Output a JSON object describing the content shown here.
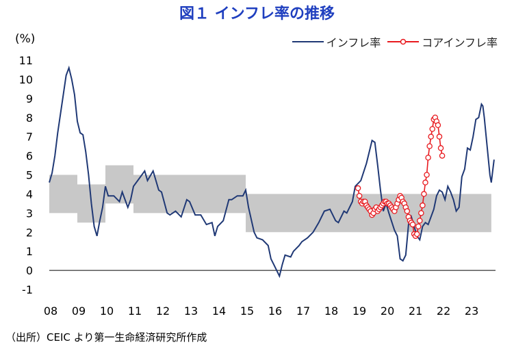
{
  "title": "図１ インフレ率の推移",
  "unit_label": "(%)",
  "source": "（出所）CEIC より第一生命経済研究所作成",
  "colors": {
    "inflation": "#1f3875",
    "core": "#e8191e",
    "band": "#c8c8c8",
    "title": "#1f3fbf"
  },
  "chart_data": {
    "type": "line",
    "ylim": [
      -1,
      11
    ],
    "yticks": [
      "11",
      "10",
      "9",
      "8",
      "7",
      "6",
      "5",
      "4",
      "3",
      "2",
      "1",
      "0",
      "-1"
    ],
    "xticks": [
      "08",
      "09",
      "10",
      "11",
      "12",
      "13",
      "14",
      "15",
      "16",
      "17",
      "18",
      "19",
      "20",
      "21",
      "22",
      "23"
    ],
    "legend": [
      {
        "name": "インフレ率",
        "key": "inflation"
      },
      {
        "name": "コアインフレ率",
        "key": "core"
      }
    ],
    "target_band": [
      {
        "x0": 2008.0,
        "x1": 2009.0,
        "lo": 3,
        "hi": 5
      },
      {
        "x0": 2009.0,
        "x1": 2010.0,
        "lo": 2.5,
        "hi": 4.5
      },
      {
        "x0": 2010.0,
        "x1": 2011.0,
        "lo": 3.5,
        "hi": 5.5
      },
      {
        "x0": 2011.0,
        "x1": 2015.0,
        "lo": 3,
        "hi": 5
      },
      {
        "x0": 2015.0,
        "x1": 2023.75,
        "lo": 2,
        "hi": 4
      }
    ],
    "series": [
      {
        "name": "インフレ率",
        "key": "inflation",
        "points": [
          [
            2008.0,
            4.6
          ],
          [
            2008.1,
            5.1
          ],
          [
            2008.2,
            6.0
          ],
          [
            2008.3,
            7.2
          ],
          [
            2008.4,
            8.2
          ],
          [
            2008.5,
            9.2
          ],
          [
            2008.6,
            10.2
          ],
          [
            2008.7,
            10.6
          ],
          [
            2008.8,
            10.0
          ],
          [
            2008.9,
            9.2
          ],
          [
            2009.0,
            7.8
          ],
          [
            2009.1,
            7.2
          ],
          [
            2009.2,
            7.1
          ],
          [
            2009.3,
            6.2
          ],
          [
            2009.4,
            5.0
          ],
          [
            2009.5,
            3.5
          ],
          [
            2009.6,
            2.3
          ],
          [
            2009.7,
            1.8
          ],
          [
            2009.8,
            2.6
          ],
          [
            2009.9,
            3.3
          ],
          [
            2010.0,
            4.4
          ],
          [
            2010.1,
            3.9
          ],
          [
            2010.3,
            3.9
          ],
          [
            2010.5,
            3.6
          ],
          [
            2010.6,
            4.1
          ],
          [
            2010.8,
            3.3
          ],
          [
            2010.9,
            3.7
          ],
          [
            2011.0,
            4.4
          ],
          [
            2011.2,
            4.8
          ],
          [
            2011.4,
            5.2
          ],
          [
            2011.5,
            4.7
          ],
          [
            2011.7,
            5.2
          ],
          [
            2011.9,
            4.2
          ],
          [
            2012.0,
            4.1
          ],
          [
            2012.2,
            3.0
          ],
          [
            2012.3,
            2.9
          ],
          [
            2012.5,
            3.1
          ],
          [
            2012.7,
            2.8
          ],
          [
            2012.9,
            3.7
          ],
          [
            2013.0,
            3.6
          ],
          [
            2013.2,
            2.9
          ],
          [
            2013.4,
            2.9
          ],
          [
            2013.6,
            2.4
          ],
          [
            2013.8,
            2.5
          ],
          [
            2013.9,
            1.8
          ],
          [
            2014.0,
            2.3
          ],
          [
            2014.2,
            2.6
          ],
          [
            2014.4,
            3.7
          ],
          [
            2014.5,
            3.7
          ],
          [
            2014.7,
            3.9
          ],
          [
            2014.9,
            3.9
          ],
          [
            2015.0,
            4.2
          ],
          [
            2015.1,
            3.3
          ],
          [
            2015.3,
            2.0
          ],
          [
            2015.4,
            1.7
          ],
          [
            2015.6,
            1.6
          ],
          [
            2015.8,
            1.3
          ],
          [
            2015.9,
            0.6
          ],
          [
            2016.0,
            0.3
          ],
          [
            2016.2,
            -0.3
          ],
          [
            2016.3,
            0.3
          ],
          [
            2016.4,
            0.8
          ],
          [
            2016.6,
            0.7
          ],
          [
            2016.7,
            1.0
          ],
          [
            2016.9,
            1.3
          ],
          [
            2017.0,
            1.5
          ],
          [
            2017.2,
            1.7
          ],
          [
            2017.4,
            2.0
          ],
          [
            2017.6,
            2.5
          ],
          [
            2017.8,
            3.1
          ],
          [
            2018.0,
            3.2
          ],
          [
            2018.2,
            2.6
          ],
          [
            2018.3,
            2.5
          ],
          [
            2018.5,
            3.1
          ],
          [
            2018.6,
            3.0
          ],
          [
            2018.8,
            3.6
          ],
          [
            2018.9,
            4.4
          ],
          [
            2019.1,
            4.7
          ],
          [
            2019.3,
            5.6
          ],
          [
            2019.5,
            6.8
          ],
          [
            2019.6,
            6.7
          ],
          [
            2019.7,
            5.5
          ],
          [
            2019.8,
            4.2
          ],
          [
            2019.9,
            3.1
          ],
          [
            2020.0,
            3.5
          ],
          [
            2020.1,
            3.0
          ],
          [
            2020.3,
            2.1
          ],
          [
            2020.4,
            1.8
          ],
          [
            2020.5,
            0.6
          ],
          [
            2020.6,
            0.5
          ],
          [
            2020.7,
            0.8
          ],
          [
            2020.8,
            2.4
          ],
          [
            2020.9,
            2.8
          ],
          [
            2021.0,
            2.3
          ],
          [
            2021.1,
            1.8
          ],
          [
            2021.2,
            1.6
          ],
          [
            2021.3,
            2.3
          ],
          [
            2021.4,
            2.5
          ],
          [
            2021.5,
            2.4
          ],
          [
            2021.7,
            3.2
          ],
          [
            2021.8,
            3.9
          ],
          [
            2021.9,
            4.2
          ],
          [
            2022.0,
            4.1
          ],
          [
            2022.1,
            3.7
          ],
          [
            2022.2,
            4.4
          ],
          [
            2022.3,
            4.1
          ],
          [
            2022.4,
            3.7
          ],
          [
            2022.5,
            3.1
          ],
          [
            2022.6,
            3.3
          ],
          [
            2022.7,
            4.9
          ],
          [
            2022.8,
            5.3
          ],
          [
            2022.9,
            6.4
          ],
          [
            2023.0,
            6.3
          ],
          [
            2023.1,
            7.0
          ],
          [
            2023.2,
            7.9
          ],
          [
            2023.3,
            8.0
          ],
          [
            2023.4,
            8.7
          ],
          [
            2023.45,
            8.6
          ],
          [
            2023.5,
            8.0
          ],
          [
            2023.6,
            6.5
          ],
          [
            2023.7,
            5.0
          ],
          [
            2023.75,
            4.6
          ],
          [
            2023.85,
            5.8
          ]
        ]
      },
      {
        "name": "コアインフレ率",
        "key": "core",
        "points": [
          [
            2019.0,
            4.3
          ],
          [
            2019.05,
            3.9
          ],
          [
            2019.1,
            3.6
          ],
          [
            2019.15,
            3.5
          ],
          [
            2019.2,
            3.6
          ],
          [
            2019.25,
            3.6
          ],
          [
            2019.3,
            3.4
          ],
          [
            2019.35,
            3.3
          ],
          [
            2019.4,
            3.2
          ],
          [
            2019.45,
            3.1
          ],
          [
            2019.5,
            2.9
          ],
          [
            2019.55,
            3.0
          ],
          [
            2019.6,
            3.2
          ],
          [
            2019.65,
            3.3
          ],
          [
            2019.7,
            3.1
          ],
          [
            2019.75,
            3.2
          ],
          [
            2019.8,
            3.3
          ],
          [
            2019.85,
            3.4
          ],
          [
            2019.9,
            3.5
          ],
          [
            2019.95,
            3.6
          ],
          [
            2020.0,
            3.6
          ],
          [
            2020.05,
            3.5
          ],
          [
            2020.1,
            3.5
          ],
          [
            2020.15,
            3.4
          ],
          [
            2020.2,
            3.3
          ],
          [
            2020.25,
            3.2
          ],
          [
            2020.3,
            3.1
          ],
          [
            2020.35,
            3.3
          ],
          [
            2020.4,
            3.5
          ],
          [
            2020.45,
            3.7
          ],
          [
            2020.5,
            3.9
          ],
          [
            2020.55,
            3.8
          ],
          [
            2020.6,
            3.6
          ],
          [
            2020.65,
            3.5
          ],
          [
            2020.7,
            3.3
          ],
          [
            2020.75,
            3.1
          ],
          [
            2020.8,
            2.8
          ],
          [
            2020.85,
            2.6
          ],
          [
            2020.9,
            2.5
          ],
          [
            2020.95,
            2.4
          ],
          [
            2021.0,
            1.9
          ],
          [
            2021.05,
            1.8
          ],
          [
            2021.1,
            1.9
          ],
          [
            2021.15,
            2.3
          ],
          [
            2021.2,
            2.6
          ],
          [
            2021.25,
            3.0
          ],
          [
            2021.3,
            3.4
          ],
          [
            2021.35,
            4.0
          ],
          [
            2021.4,
            4.6
          ],
          [
            2021.45,
            5.0
          ],
          [
            2021.5,
            5.9
          ],
          [
            2021.55,
            6.5
          ],
          [
            2021.6,
            7.0
          ],
          [
            2021.65,
            7.4
          ],
          [
            2021.7,
            7.9
          ],
          [
            2021.75,
            8.0
          ],
          [
            2021.8,
            7.8
          ],
          [
            2021.85,
            7.6
          ],
          [
            2021.9,
            7.0
          ],
          [
            2021.95,
            6.4
          ],
          [
            2022.0,
            6.0
          ]
        ]
      }
    ]
  }
}
